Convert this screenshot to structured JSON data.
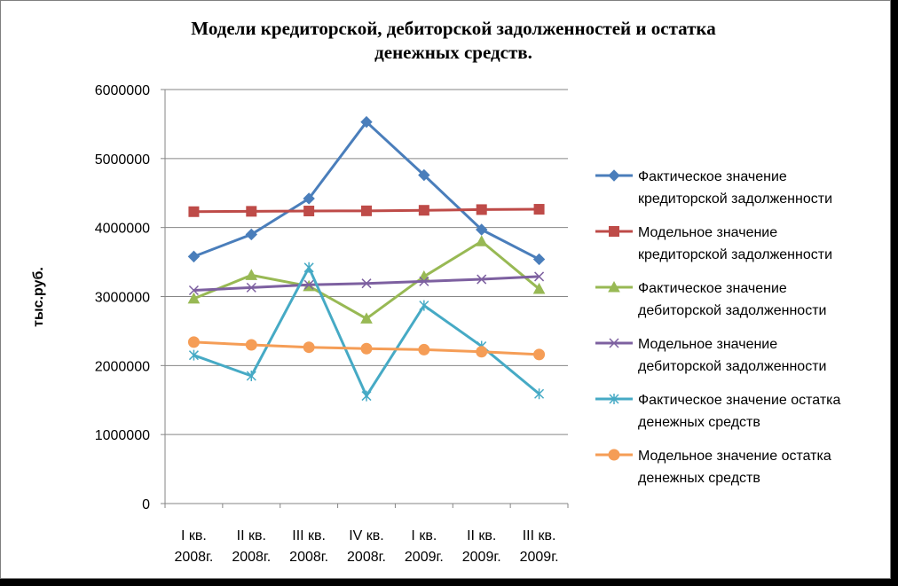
{
  "chart_data": {
    "type": "line",
    "title_lines": [
      "Модели кредиторской, дебиторской задолженностей и остатка",
      "денежных средств."
    ],
    "ylabel": "тыс.руб.",
    "xlabel": "",
    "ylim": [
      0,
      6000000
    ],
    "yticks": [
      0,
      1000000,
      2000000,
      3000000,
      4000000,
      5000000,
      6000000
    ],
    "ytick_labels": [
      "0",
      "1000000",
      "2000000",
      "3000000",
      "4000000",
      "5000000",
      "6000000"
    ],
    "categories": [
      [
        "I кв.",
        "2008г."
      ],
      [
        "II кв.",
        "2008г."
      ],
      [
        "III кв.",
        "2008г."
      ],
      [
        "IV кв.",
        "2008г."
      ],
      [
        "I кв.",
        "2009г."
      ],
      [
        "II кв.",
        "2009г."
      ],
      [
        "III кв.",
        "2009г."
      ]
    ],
    "grid": true,
    "legend_position": "right",
    "series": [
      {
        "name": "Фактическое значение кредиторской задолженности",
        "legend_lines": [
          "Фактическое значение",
          "кредиторской задолженности"
        ],
        "color": "#4a7ebb",
        "marker": "diamond",
        "values": [
          3580000,
          3900000,
          4420000,
          5530000,
          4760000,
          3970000,
          3540000
        ]
      },
      {
        "name": "Модельное значение кредиторской задолженности",
        "legend_lines": [
          "Модельное значение",
          "кредиторской задолженности"
        ],
        "color": "#be4b48",
        "marker": "square",
        "values": [
          4230000,
          4235000,
          4240000,
          4242000,
          4250000,
          4260000,
          4265000
        ]
      },
      {
        "name": "Фактическое значение дебиторской задолженности",
        "legend_lines": [
          "Фактическое значение",
          "дебиторской задолженности"
        ],
        "color": "#98b954",
        "marker": "triangle",
        "values": [
          2970000,
          3310000,
          3150000,
          2680000,
          3290000,
          3800000,
          3110000
        ]
      },
      {
        "name": "Модельное значение дебиторской задолженности",
        "legend_lines": [
          "Модельное значение",
          "дебиторской задолженности"
        ],
        "color": "#7d60a0",
        "marker": "x",
        "values": [
          3090000,
          3130000,
          3170000,
          3190000,
          3220000,
          3250000,
          3290000
        ]
      },
      {
        "name": "Фактическое значение остатка денежных средств",
        "legend_lines": [
          "Фактическое значение  остатка",
          "денежных средств"
        ],
        "color": "#46aac5",
        "marker": "star",
        "values": [
          2150000,
          1850000,
          3420000,
          1560000,
          2870000,
          2280000,
          1590000
        ]
      },
      {
        "name": "Модельное значение остатка денежных средств",
        "legend_lines": [
          "Модельное значение  остатка",
          "денежных средств"
        ],
        "color": "#f59d56",
        "marker": "circle",
        "values": [
          2340000,
          2300000,
          2265000,
          2245000,
          2230000,
          2200000,
          2160000
        ]
      }
    ]
  }
}
